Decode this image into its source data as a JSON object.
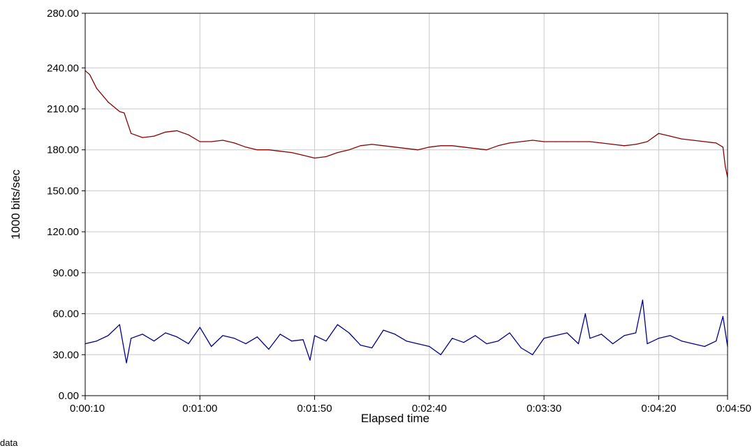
{
  "chart_data": {
    "type": "line",
    "title": "",
    "xlabel": "Elapsed time",
    "ylabel": "1000 bits/sec",
    "x_tick_labels": [
      "0:00:10",
      "0:01:00",
      "0:01:50",
      "0:02:40",
      "0:03:30",
      "0:04:20",
      "0:04:50"
    ],
    "x_range_seconds": [
      10,
      290
    ],
    "y_tick_labels": [
      "0.00",
      "30.00",
      "60.00",
      "90.00",
      "120.00",
      "150.00",
      "180.00",
      "210.00",
      "240.00",
      "280.00"
    ],
    "ylim": [
      0,
      280
    ],
    "grid": true,
    "legend": "none",
    "series": [
      {
        "color": "#8b0000",
        "x": [
          "0:00:10",
          "0:00:12",
          "0:00:15",
          "0:00:20",
          "0:00:25",
          "0:00:27",
          "0:00:30",
          "0:00:35",
          "0:00:40",
          "0:00:45",
          "0:00:50",
          "0:00:55",
          "0:01:00",
          "0:01:05",
          "0:01:10",
          "0:01:15",
          "0:01:20",
          "0:01:25",
          "0:01:30",
          "0:01:35",
          "0:01:40",
          "0:01:45",
          "0:01:50",
          "0:01:55",
          "0:02:00",
          "0:02:05",
          "0:02:10",
          "0:02:15",
          "0:02:20",
          "0:02:25",
          "0:02:30",
          "0:02:35",
          "0:02:40",
          "0:02:45",
          "0:02:50",
          "0:02:55",
          "0:03:00",
          "0:03:05",
          "0:03:10",
          "0:03:15",
          "0:03:20",
          "0:03:25",
          "0:03:30",
          "0:03:35",
          "0:03:40",
          "0:03:45",
          "0:03:50",
          "0:03:55",
          "0:04:00",
          "0:04:05",
          "0:04:10",
          "0:04:15",
          "0:04:20",
          "0:04:25",
          "0:04:30",
          "0:04:35",
          "0:04:40",
          "0:04:45",
          "0:04:48",
          "0:04:49",
          "0:04:50"
        ],
        "values": [
          238,
          235,
          225,
          215,
          208,
          207,
          192,
          189,
          190,
          193,
          194,
          191,
          186,
          186,
          187,
          185,
          182,
          180,
          180,
          179,
          178,
          176,
          174,
          175,
          178,
          180,
          183,
          184,
          183,
          182,
          181,
          180,
          182,
          183,
          183,
          182,
          181,
          180,
          183,
          185,
          186,
          187,
          186,
          186,
          186,
          186,
          186,
          185,
          184,
          183,
          184,
          186,
          192,
          190,
          188,
          187,
          186,
          185,
          182,
          168,
          160
        ]
      },
      {
        "color": "#00008b",
        "x": [
          "0:00:10",
          "0:00:15",
          "0:00:20",
          "0:00:25",
          "0:00:28",
          "0:00:30",
          "0:00:35",
          "0:00:40",
          "0:00:45",
          "0:00:50",
          "0:00:55",
          "0:01:00",
          "0:01:05",
          "0:01:10",
          "0:01:15",
          "0:01:20",
          "0:01:25",
          "0:01:30",
          "0:01:35",
          "0:01:40",
          "0:01:45",
          "0:01:48",
          "0:01:50",
          "0:01:55",
          "0:02:00",
          "0:02:05",
          "0:02:10",
          "0:02:15",
          "0:02:20",
          "0:02:25",
          "0:02:30",
          "0:02:35",
          "0:02:40",
          "0:02:45",
          "0:02:50",
          "0:02:55",
          "0:03:00",
          "0:03:05",
          "0:03:10",
          "0:03:15",
          "0:03:20",
          "0:03:25",
          "0:03:30",
          "0:03:35",
          "0:03:40",
          "0:03:45",
          "0:03:48",
          "0:03:50",
          "0:03:55",
          "0:04:00",
          "0:04:05",
          "0:04:10",
          "0:04:13",
          "0:04:15",
          "0:04:20",
          "0:04:25",
          "0:04:30",
          "0:04:35",
          "0:04:40",
          "0:04:45",
          "0:04:48",
          "0:04:50"
        ],
        "values": [
          38,
          40,
          44,
          52,
          24,
          42,
          45,
          40,
          46,
          43,
          38,
          50,
          36,
          44,
          42,
          38,
          43,
          34,
          45,
          40,
          41,
          26,
          44,
          40,
          52,
          46,
          37,
          35,
          48,
          45,
          40,
          38,
          36,
          30,
          42,
          39,
          44,
          38,
          40,
          46,
          35,
          30,
          42,
          44,
          46,
          38,
          60,
          42,
          45,
          38,
          44,
          46,
          70,
          38,
          42,
          44,
          40,
          38,
          36,
          40,
          58,
          36
        ]
      }
    ]
  },
  "footer_text": "data"
}
